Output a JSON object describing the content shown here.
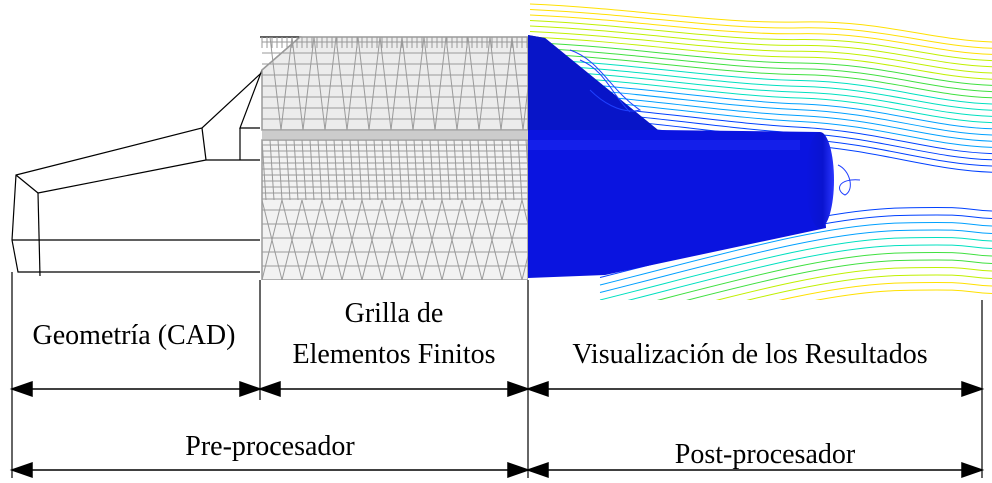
{
  "panels": {
    "geometry": {
      "label": "Geometría (CAD)"
    },
    "mesh": {
      "label_line1": "Grilla de",
      "label_line2": "Elementos Finitos"
    },
    "results": {
      "label": "Visualización de los Resultados"
    }
  },
  "stages": {
    "pre": {
      "label": "Pre-procesador"
    },
    "post": {
      "label": "Post-procesador"
    }
  },
  "colors": {
    "outline": "#000000",
    "mesh": "#9a9a9a",
    "body": "#0a14e0",
    "streamline_palette": [
      "#0040ff",
      "#00a0ff",
      "#00e0c0",
      "#40e040",
      "#c0f000",
      "#ffe000"
    ]
  }
}
